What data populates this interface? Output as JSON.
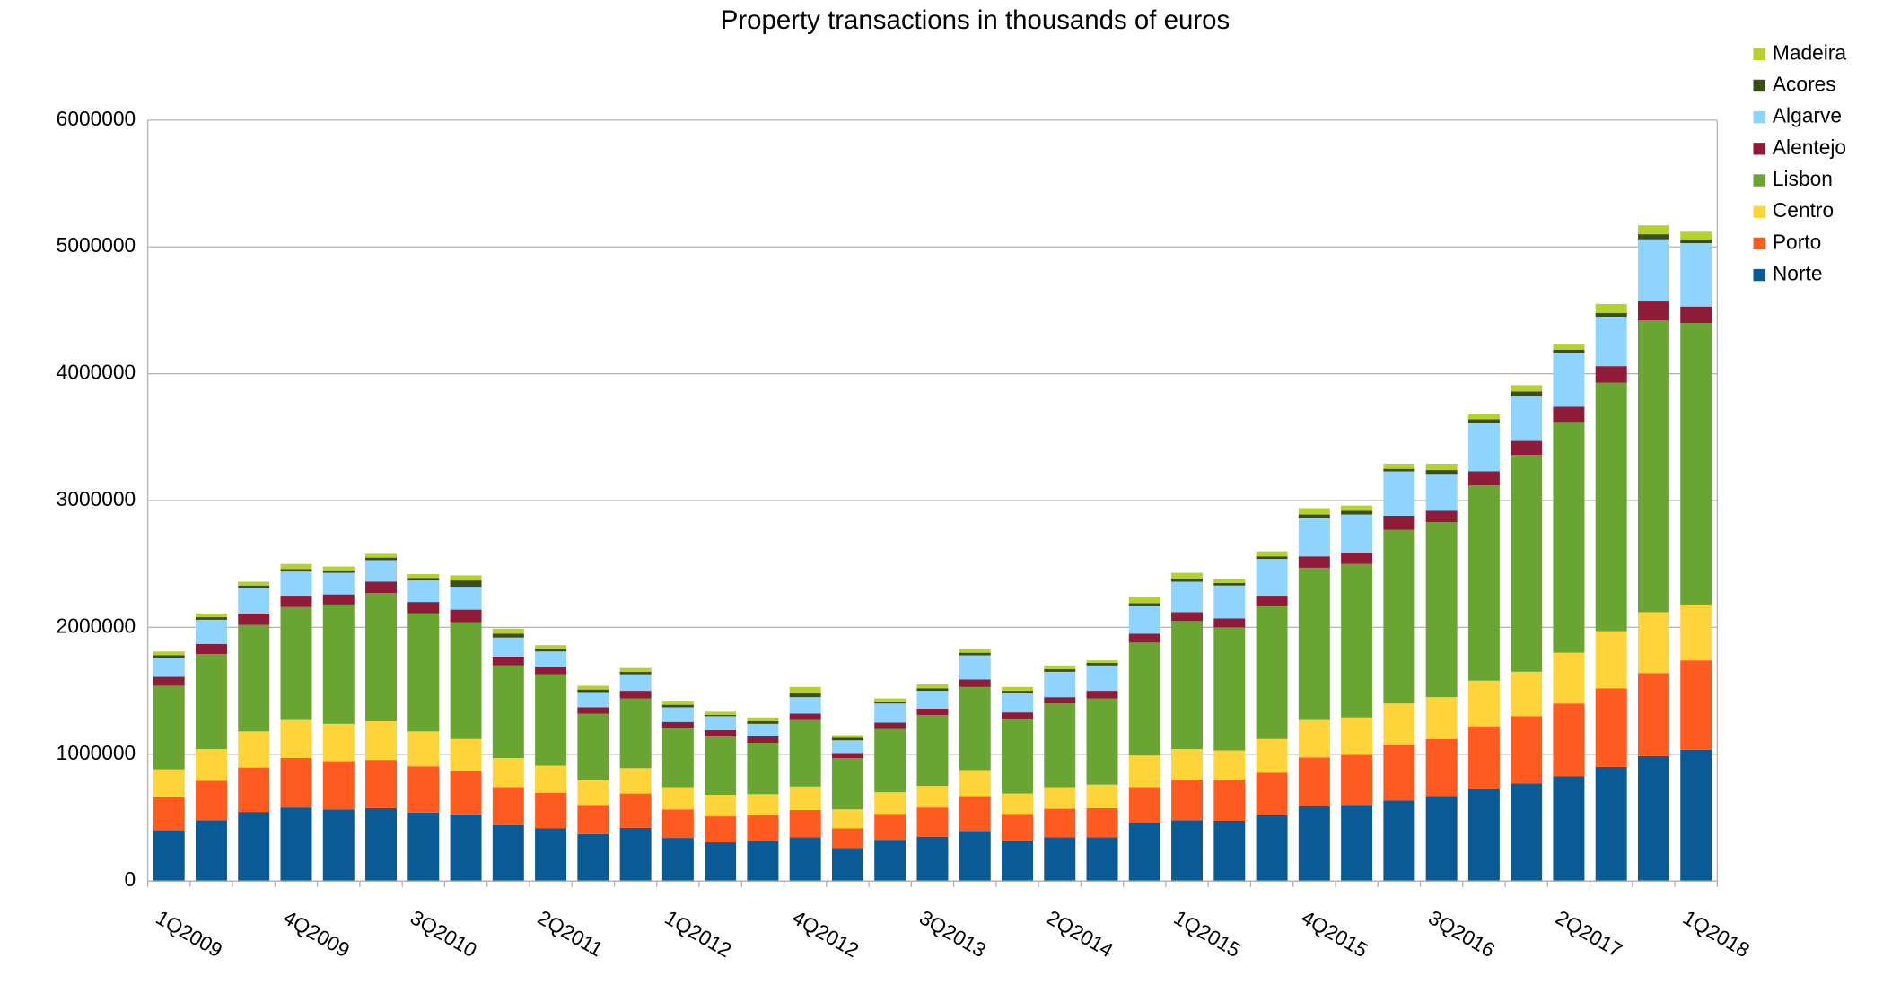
{
  "chart_data": {
    "type": "stacked-bar",
    "title": "Property transactions in thousands of euros",
    "categories": [
      "1Q2009",
      null,
      null,
      "4Q2009",
      null,
      null,
      "3Q2010",
      null,
      null,
      "2Q2011",
      null,
      null,
      "1Q2012",
      null,
      null,
      "4Q2012",
      null,
      null,
      "3Q2013",
      null,
      null,
      "2Q2014",
      null,
      null,
      "1Q2015",
      null,
      null,
      "4Q2015",
      null,
      null,
      "3Q2016",
      null,
      null,
      "2Q2017",
      null,
      null,
      "1Q2018"
    ],
    "series": [
      {
        "name": "Norte",
        "color": "#0a5a96",
        "values": [
          400000,
          480000,
          545000,
          580000,
          565000,
          575000,
          540000,
          525000,
          440000,
          415000,
          370000,
          420000,
          340000,
          305000,
          315000,
          345000,
          260000,
          325000,
          350000,
          395000,
          320000,
          345000,
          345000,
          460000,
          480000,
          475000,
          520000,
          590000,
          600000,
          635000,
          670000,
          730000,
          770000,
          825000,
          900000,
          985000,
          1035000
        ]
      },
      {
        "name": "Porto",
        "color": "#ff5a1f",
        "values": [
          260000,
          310000,
          350000,
          390000,
          380000,
          380000,
          365000,
          340000,
          300000,
          280000,
          230000,
          270000,
          225000,
          205000,
          205000,
          215000,
          155000,
          205000,
          230000,
          275000,
          210000,
          225000,
          230000,
          280000,
          320000,
          325000,
          335000,
          385000,
          395000,
          440000,
          450000,
          490000,
          530000,
          575000,
          620000,
          655000,
          705000
        ]
      },
      {
        "name": "Centro",
        "color": "#ffd33a",
        "values": [
          220000,
          250000,
          285000,
          300000,
          295000,
          305000,
          275000,
          255000,
          230000,
          215000,
          195000,
          200000,
          175000,
          170000,
          165000,
          185000,
          150000,
          170000,
          170000,
          205000,
          160000,
          170000,
          185000,
          250000,
          240000,
          230000,
          265000,
          295000,
          295000,
          325000,
          330000,
          360000,
          350000,
          400000,
          450000,
          480000,
          440000
        ]
      },
      {
        "name": "Lisbon",
        "color": "#6aa533",
        "values": [
          660000,
          750000,
          840000,
          890000,
          940000,
          1010000,
          930000,
          920000,
          730000,
          720000,
          525000,
          550000,
          470000,
          460000,
          405000,
          525000,
          405000,
          500000,
          560000,
          655000,
          590000,
          660000,
          680000,
          890000,
          1010000,
          970000,
          1050000,
          1200000,
          1210000,
          1370000,
          1380000,
          1540000,
          1710000,
          1820000,
          1960000,
          2300000,
          2220000
        ]
      },
      {
        "name": "Alentejo",
        "color": "#8e1b38",
        "values": [
          70000,
          80000,
          90000,
          90000,
          80000,
          90000,
          90000,
          100000,
          70000,
          60000,
          50000,
          60000,
          45000,
          50000,
          50000,
          50000,
          40000,
          50000,
          50000,
          60000,
          50000,
          50000,
          60000,
          70000,
          70000,
          70000,
          80000,
          90000,
          90000,
          110000,
          90000,
          110000,
          110000,
          120000,
          130000,
          150000,
          130000
        ]
      },
      {
        "name": "Algarve",
        "color": "#8fd3ff",
        "values": [
          150000,
          190000,
          200000,
          190000,
          170000,
          170000,
          170000,
          180000,
          150000,
          120000,
          120000,
          130000,
          115000,
          110000,
          100000,
          130000,
          100000,
          150000,
          140000,
          190000,
          150000,
          200000,
          200000,
          220000,
          240000,
          260000,
          290000,
          300000,
          300000,
          350000,
          290000,
          380000,
          350000,
          420000,
          390000,
          490000,
          500000
        ]
      },
      {
        "name": "Acores",
        "color": "#3b4e1a",
        "values": [
          20000,
          20000,
          20000,
          20000,
          20000,
          20000,
          20000,
          50000,
          30000,
          20000,
          20000,
          20000,
          20000,
          10000,
          20000,
          30000,
          20000,
          10000,
          20000,
          20000,
          20000,
          20000,
          20000,
          20000,
          20000,
          20000,
          20000,
          30000,
          30000,
          20000,
          30000,
          30000,
          40000,
          30000,
          30000,
          40000,
          30000
        ]
      },
      {
        "name": "Madeira",
        "color": "#b5d12c",
        "values": [
          30000,
          30000,
          30000,
          40000,
          30000,
          30000,
          30000,
          40000,
          40000,
          30000,
          30000,
          30000,
          25000,
          25000,
          30000,
          50000,
          20000,
          30000,
          30000,
          30000,
          30000,
          30000,
          20000,
          50000,
          50000,
          30000,
          40000,
          50000,
          40000,
          40000,
          50000,
          40000,
          50000,
          40000,
          70000,
          70000,
          60000
        ]
      }
    ],
    "ylim": [
      0,
      6000000
    ],
    "yticks": [
      0,
      1000000,
      2000000,
      3000000,
      4000000,
      5000000,
      6000000
    ],
    "grid": true,
    "legend": "right"
  }
}
